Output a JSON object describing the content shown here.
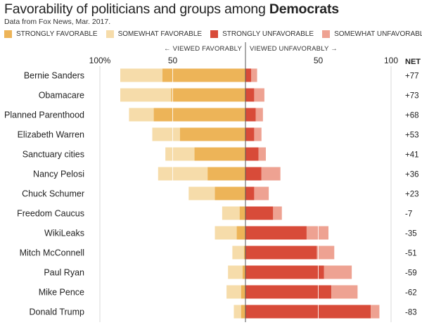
{
  "header": {
    "title_prefix": "Favorability of politicians and groups among ",
    "title_bold": "Democrats",
    "source": "Data from Fox News, Mar. 2017."
  },
  "legend": [
    {
      "label": "STRONGLY FAVORABLE",
      "color": "#edb458"
    },
    {
      "label": "SOMEWHAT FAVORABLE",
      "color": "#f6dcaa"
    },
    {
      "label": "STRONGLY UNFAVORABLE",
      "color": "#d84b39"
    },
    {
      "label": "SOMEWHAT UNFAVORABLE",
      "color": "#eea292"
    }
  ],
  "chart_data": {
    "type": "bar",
    "orientation": "horizontal-diverging",
    "title": "Favorability of politicians and groups among Democrats",
    "source": "Data from Fox News, Mar. 2017.",
    "left_direction_label": "← VIEWED FAVORABLY",
    "right_direction_label": "VIEWED UNFAVORABLY →",
    "net_header": "NET",
    "axis_ticks": [
      {
        "value": -100,
        "label": "100%"
      },
      {
        "value": -50,
        "label": "50"
      },
      {
        "value": 50,
        "label": "50"
      },
      {
        "value": 100,
        "label": "100"
      }
    ],
    "xlim": [
      -100,
      100
    ],
    "categories": [
      "Bernie Sanders",
      "Obamacare",
      "Planned Parenthood",
      "Elizabeth Warren",
      "Sanctuary cities",
      "Nancy Pelosi",
      "Chuck Schumer",
      "Freedom Caucus",
      "WikiLeaks",
      "Mitch McConnell",
      "Paul Ryan",
      "Mike Pence",
      "Donald Trump"
    ],
    "series": [
      {
        "name": "STRONGLY FAVORABLE",
        "values": [
          57,
          51,
          63,
          45,
          35,
          26,
          21,
          4,
          6,
          1,
          2,
          3,
          3
        ]
      },
      {
        "name": "SOMEWHAT FAVORABLE",
        "values": [
          29,
          35,
          17,
          19,
          20,
          34,
          18,
          12,
          15,
          8,
          10,
          10,
          5
        ]
      },
      {
        "name": "STRONGLY UNFAVORABLE",
        "values": [
          4,
          6,
          7,
          6,
          9,
          11,
          6,
          19,
          42,
          49,
          54,
          59,
          86
        ]
      },
      {
        "name": "SOMEWHAT UNFAVORABLE",
        "values": [
          4,
          7,
          5,
          5,
          5,
          13,
          10,
          6,
          15,
          12,
          19,
          18,
          6
        ]
      }
    ],
    "net_labels": [
      "+77",
      "+73",
      "+68",
      "+53",
      "+41",
      "+36",
      "+23",
      "-7",
      "-35",
      "-51",
      "-59",
      "-62",
      "-83"
    ]
  }
}
